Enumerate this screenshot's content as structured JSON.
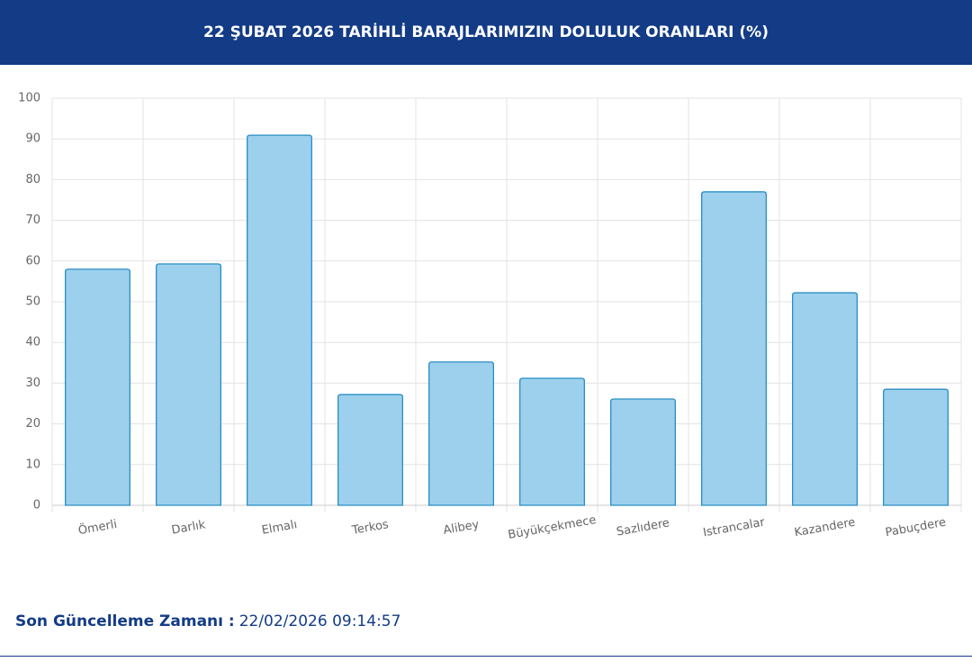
{
  "chart_data": {
    "type": "bar",
    "title": "22 ŞUBAT 2026 TARİHLİ BARAJLARIMIZIN DOLULUK ORANLARI (%)",
    "categories": [
      "Ömerli",
      "Darlık",
      "Elmalı",
      "Terkos",
      "Alibey",
      "Büyükçekmece",
      "Sazlıdere",
      "Istrancalar",
      "Kazandere",
      "Pabuçdere"
    ],
    "values": [
      58.0,
      59.3,
      90.9,
      27.2,
      35.2,
      31.2,
      26.1,
      77.0,
      52.2,
      28.5
    ],
    "color": "#9dd0ed",
    "ylim": [
      0,
      100
    ],
    "yticks": [
      0,
      10,
      20,
      30,
      40,
      50,
      60,
      70,
      80,
      90,
      100
    ],
    "grid": true
  },
  "footer": {
    "label": "Son Güncelleme Zamanı :",
    "value": "22/02/2026 09:14:57"
  }
}
